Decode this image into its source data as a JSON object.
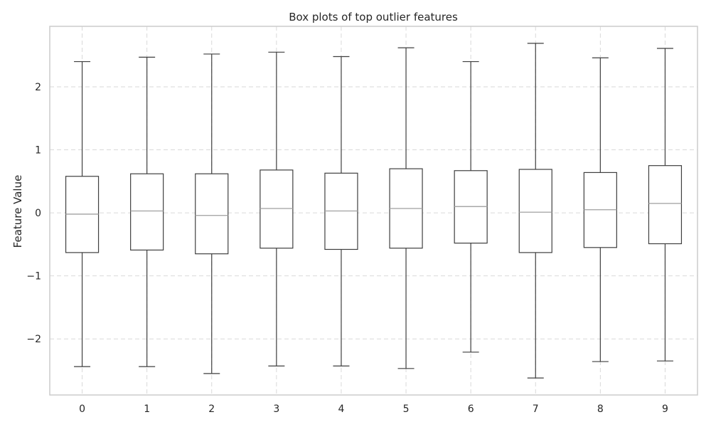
{
  "chart_data": {
    "type": "box",
    "title": "Box plots of top outlier features",
    "xlabel": "",
    "ylabel": "Feature Value",
    "categories": [
      "0",
      "1",
      "2",
      "3",
      "4",
      "5",
      "6",
      "7",
      "8",
      "9"
    ],
    "boxes": [
      {
        "whisker_low": -2.44,
        "q1": -0.63,
        "median": -0.02,
        "q3": 0.58,
        "whisker_high": 2.4
      },
      {
        "whisker_low": -2.44,
        "q1": -0.59,
        "median": 0.03,
        "q3": 0.62,
        "whisker_high": 2.47
      },
      {
        "whisker_low": -2.55,
        "q1": -0.65,
        "median": -0.04,
        "q3": 0.62,
        "whisker_high": 2.52
      },
      {
        "whisker_low": -2.43,
        "q1": -0.56,
        "median": 0.07,
        "q3": 0.68,
        "whisker_high": 2.55
      },
      {
        "whisker_low": -2.43,
        "q1": -0.58,
        "median": 0.03,
        "q3": 0.63,
        "whisker_high": 2.48
      },
      {
        "whisker_low": -2.47,
        "q1": -0.56,
        "median": 0.07,
        "q3": 0.7,
        "whisker_high": 2.62
      },
      {
        "whisker_low": -2.21,
        "q1": -0.48,
        "median": 0.1,
        "q3": 0.67,
        "whisker_high": 2.4
      },
      {
        "whisker_low": -2.62,
        "q1": -0.63,
        "median": 0.01,
        "q3": 0.69,
        "whisker_high": 2.69
      },
      {
        "whisker_low": -2.36,
        "q1": -0.55,
        "median": 0.05,
        "q3": 0.64,
        "whisker_high": 2.46
      },
      {
        "whisker_low": -2.35,
        "q1": -0.49,
        "median": 0.15,
        "q3": 0.75,
        "whisker_high": 2.61
      }
    ],
    "yticks": [
      -2,
      -1,
      0,
      1,
      2
    ],
    "ytick_labels": [
      "−2",
      "−1",
      "0",
      "1",
      "2"
    ],
    "ylim": [
      -2.89,
      2.96
    ],
    "grid": true,
    "colors": {
      "box_edge": "#3f3f3f",
      "median": "#a8a8a8",
      "grid": "#d9d9d9",
      "frame": "#cccccc"
    }
  }
}
